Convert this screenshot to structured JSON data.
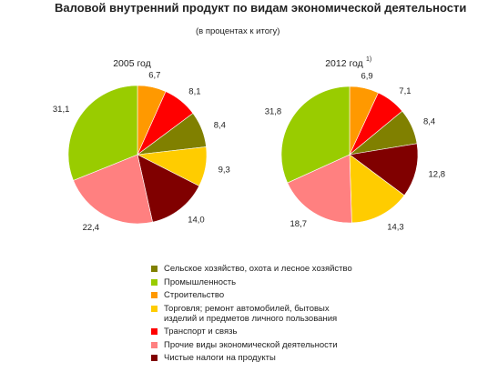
{
  "title": "Валовой внутренний продукт по видам экономической деятельности",
  "subtitle": "(в процентах к итогу)",
  "chart_data": {
    "type": "pie",
    "legend_position": "bottom",
    "categories": [
      "Сельское хозяйство, охота и лесное хозяйство",
      "Промышленность",
      "Строительство",
      "Торговля; ремонт автомобилей, бытовых\nизделий и предметов личного пользования",
      "Транспорт и связь",
      "Прочие виды экономической деятельности",
      "Чистые налоги на продукты"
    ],
    "colors": [
      "#808000",
      "#99CC00",
      "#FF9900",
      "#FFCC00",
      "#FF0000",
      "#FF8080",
      "#800000"
    ],
    "charts": [
      {
        "label": "2005 год",
        "footnote": "",
        "slices": [
          {
            "category": 2,
            "value": "6,7"
          },
          {
            "category": 4,
            "value": "8,1"
          },
          {
            "category": 0,
            "value": "8,4"
          },
          {
            "category": 3,
            "value": "9,3"
          },
          {
            "category": 6,
            "value": "14,0"
          },
          {
            "category": 5,
            "value": "22,4"
          },
          {
            "category": 1,
            "value": "31,1"
          }
        ]
      },
      {
        "label": "2012 год",
        "footnote": "1)",
        "slices": [
          {
            "category": 2,
            "value": "6,9"
          },
          {
            "category": 4,
            "value": "7,1"
          },
          {
            "category": 0,
            "value": "8,4"
          },
          {
            "category": 6,
            "value": "12,8"
          },
          {
            "category": 3,
            "value": "14,3"
          },
          {
            "category": 5,
            "value": "18,7"
          },
          {
            "category": 1,
            "value": "31,8"
          }
        ]
      }
    ]
  }
}
